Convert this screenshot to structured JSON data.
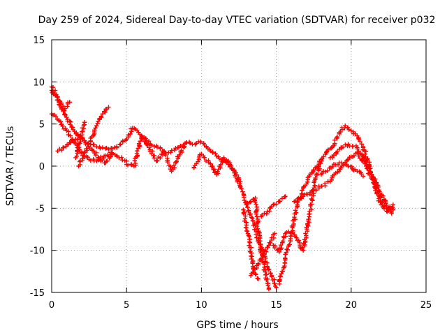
{
  "chart_data": {
    "type": "scatter",
    "title": "Day 259 of 2024, Sidereal Day-to-day VTEC variation (SDTVAR) for receiver p032",
    "xlabel": "GPS time / hours",
    "ylabel": "SDTVAR / TECUs",
    "xlim": [
      0,
      25
    ],
    "ylim": [
      -15,
      15
    ],
    "xticks": [
      0,
      5,
      10,
      15,
      20,
      25
    ],
    "yticks": [
      -15,
      -10,
      -5,
      0,
      5,
      10,
      15
    ],
    "grid": true,
    "legend": "none",
    "marker": "plus",
    "color": "#ff0000",
    "series": [
      {
        "x": [
          0.0,
          0.3,
          0.6,
          1.0,
          1.4,
          1.8,
          2.2,
          2.6,
          3.0,
          3.4,
          3.8,
          4.2,
          4.6,
          5.0,
          5.4,
          5.8,
          6.2,
          6.6,
          7.0,
          7.4,
          7.8,
          8.2,
          8.6,
          9.0,
          9.4,
          9.8,
          10.2,
          10.6,
          11.0,
          11.4,
          11.8,
          12.2,
          12.6
        ],
        "y": [
          9.4,
          8.5,
          7.0,
          5.8,
          4.6,
          3.6,
          3.0,
          2.6,
          2.3,
          2.2,
          2.0,
          2.2,
          2.6,
          3.2,
          4.5,
          4.0,
          3.4,
          2.6,
          2.4,
          1.8,
          1.6,
          1.9,
          2.4,
          2.8,
          2.6,
          2.9,
          2.5,
          1.8,
          1.2,
          0.8,
          0.2,
          -0.6,
          -1.8
        ]
      },
      {
        "x": [
          0.0,
          0.4,
          0.8,
          1.2
        ],
        "y": [
          9.0,
          8.2,
          6.6,
          7.6
        ]
      },
      {
        "x": [
          0.0,
          0.5,
          1.0,
          1.5,
          2.0,
          2.5,
          3.0,
          3.5,
          4.0,
          4.5,
          5.0
        ],
        "y": [
          6.2,
          5.4,
          4.2,
          2.8,
          1.6,
          0.8,
          0.6,
          1.2,
          1.6,
          1.0,
          0.6
        ]
      },
      {
        "x": [
          0.4,
          0.8,
          1.2,
          1.6,
          2.0,
          2.4,
          2.8,
          3.2,
          3.6,
          4.0
        ],
        "y": [
          1.8,
          2.2,
          2.8,
          3.2,
          3.4,
          2.6,
          1.8,
          0.8,
          0.4,
          1.4
        ]
      },
      {
        "x": [
          1.8,
          2.2,
          2.6,
          3.0,
          3.4,
          3.8
        ],
        "y": [
          0.0,
          1.6,
          3.0,
          4.8,
          6.2,
          7.0
        ]
      },
      {
        "x": [
          1.6,
          1.9,
          2.2
        ],
        "y": [
          1.0,
          3.2,
          5.2
        ]
      },
      {
        "x": [
          5.0,
          5.5,
          6.0,
          6.5,
          7.0,
          7.5,
          8.0,
          8.5,
          9.0
        ],
        "y": [
          0.2,
          0.0,
          3.6,
          2.2,
          0.6,
          1.8,
          -0.6,
          1.2,
          2.8
        ]
      },
      {
        "x": [
          9.5,
          10.0,
          10.5,
          11.0,
          11.5,
          11.8
        ],
        "y": [
          -0.2,
          1.4,
          0.4,
          -1.0,
          0.8,
          0.6
        ]
      },
      {
        "x": [
          11.5,
          11.9,
          12.2,
          12.6,
          13.0,
          13.4,
          13.8,
          14.2,
          14.5
        ],
        "y": [
          1.0,
          0.4,
          -0.8,
          -2.4,
          -4.4,
          -6.2,
          -8.8,
          -12.0,
          -14.6
        ]
      },
      {
        "x": [
          12.8,
          13.0,
          13.2,
          13.4,
          13.6,
          13.8
        ],
        "y": [
          -5.2,
          -7.0,
          -9.0,
          -11.4,
          -12.8,
          -13.4
        ]
      },
      {
        "x": [
          13.0,
          13.3,
          13.6,
          13.8,
          14.1,
          14.4,
          14.7,
          15.0
        ],
        "y": [
          -4.6,
          -4.2,
          -3.8,
          -7.8,
          -10.0,
          -12.0,
          -13.0,
          -14.4
        ]
      },
      {
        "x": [
          13.3,
          13.7,
          14.1,
          14.5,
          14.9
        ],
        "y": [
          -13.0,
          -11.8,
          -10.6,
          -9.4,
          -8.0
        ]
      },
      {
        "x": [
          14.8,
          15.2,
          15.6,
          16.0,
          16.4,
          16.8,
          17.2,
          17.6,
          18.0,
          18.4,
          18.8,
          19.2,
          19.6,
          20.0,
          20.4,
          20.8,
          21.2,
          21.6,
          22.0,
          22.4,
          22.8
        ],
        "y": [
          -9.4,
          -10.2,
          -8.0,
          -7.8,
          -8.8,
          -10.0,
          -6.0,
          -1.6,
          0.6,
          1.8,
          2.4,
          4.0,
          4.8,
          4.2,
          3.6,
          2.2,
          0.2,
          -2.6,
          -4.6,
          -5.4,
          -4.6
        ]
      },
      {
        "x": [
          15.2,
          15.6,
          16.0,
          16.4,
          16.8,
          17.2,
          17.6,
          18.0
        ],
        "y": [
          -14.0,
          -11.0,
          -8.0,
          -4.6,
          -2.6,
          -1.2,
          -0.2,
          0.8
        ]
      },
      {
        "x": [
          14.0,
          14.4,
          14.8,
          15.2,
          15.6
        ],
        "y": [
          -6.0,
          -5.4,
          -4.6,
          -4.2,
          -3.6
        ]
      },
      {
        "x": [
          16.2,
          16.8,
          17.4,
          18.0,
          18.6,
          19.2,
          19.8,
          20.4,
          21.0,
          21.6,
          22.2,
          22.8
        ],
        "y": [
          -4.2,
          -3.6,
          -3.0,
          -2.4,
          -1.8,
          -0.4,
          0.8,
          1.6,
          0.0,
          -2.4,
          -4.8,
          -5.2
        ]
      },
      {
        "x": [
          18.0,
          18.6,
          19.2,
          19.8,
          20.4,
          20.8
        ],
        "y": [
          -1.0,
          -0.2,
          0.4,
          0.0,
          -0.6,
          -1.2
        ]
      },
      {
        "x": [
          18.6,
          19.2,
          19.8,
          20.4,
          21.0,
          21.6,
          22.2,
          22.7
        ],
        "y": [
          1.0,
          2.0,
          2.6,
          2.2,
          0.6,
          -1.8,
          -4.0,
          -5.6
        ]
      }
    ]
  }
}
